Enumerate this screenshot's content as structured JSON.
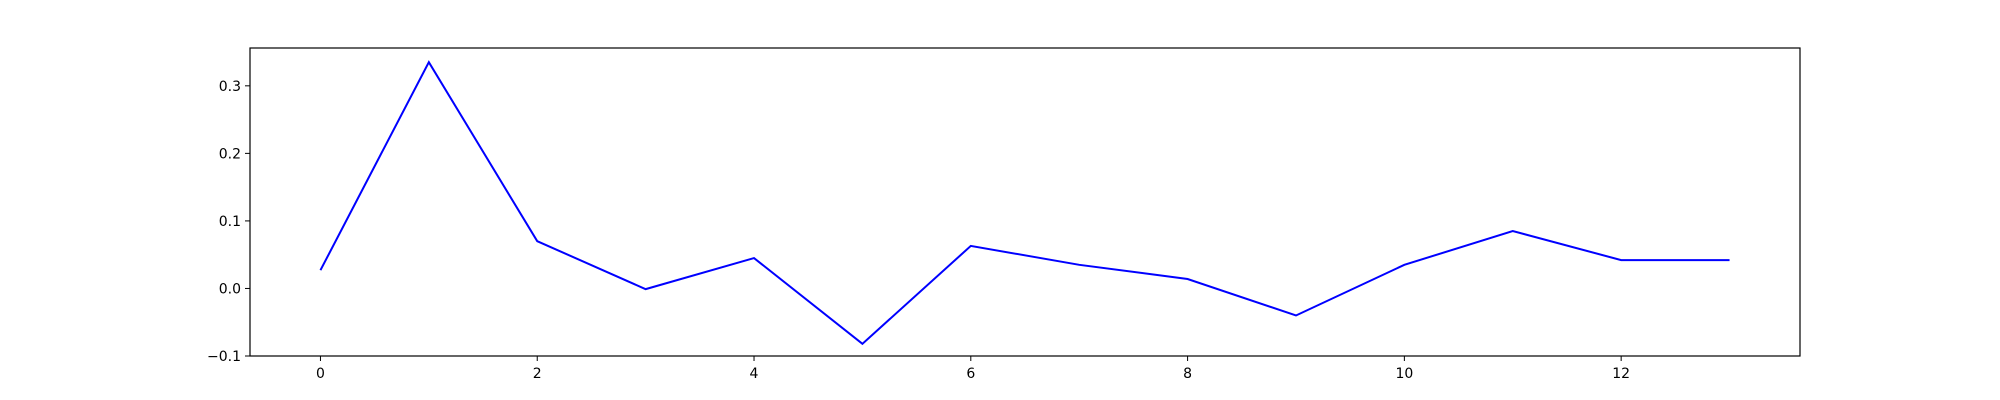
{
  "chart_data": {
    "type": "line",
    "title": "",
    "xlabel": "",
    "ylabel": "",
    "x": [
      0,
      1,
      2,
      3,
      4,
      5,
      6,
      7,
      8,
      9,
      10,
      11,
      12,
      13
    ],
    "series": [
      {
        "color": "#0000ff",
        "values": [
          0.027,
          0.335,
          0.07,
          -0.001,
          0.045,
          -0.082,
          0.063,
          0.035,
          0.014,
          -0.04,
          0.035,
          0.085,
          0.042,
          0.042
        ]
      }
    ],
    "xlim": [
      -0.65,
      13.65
    ],
    "ylim": [
      -0.1,
      0.356
    ],
    "xticks": [
      0,
      2,
      4,
      6,
      8,
      10,
      12
    ],
    "xtick_labels": [
      "0",
      "2",
      "4",
      "6",
      "8",
      "10",
      "12"
    ],
    "yticks": [
      -0.1,
      0.0,
      0.1,
      0.2,
      0.3
    ],
    "ytick_labels": [
      "−0.1",
      "0.0",
      "0.1",
      "0.2",
      "0.3"
    ],
    "grid": false,
    "legend": "none"
  }
}
